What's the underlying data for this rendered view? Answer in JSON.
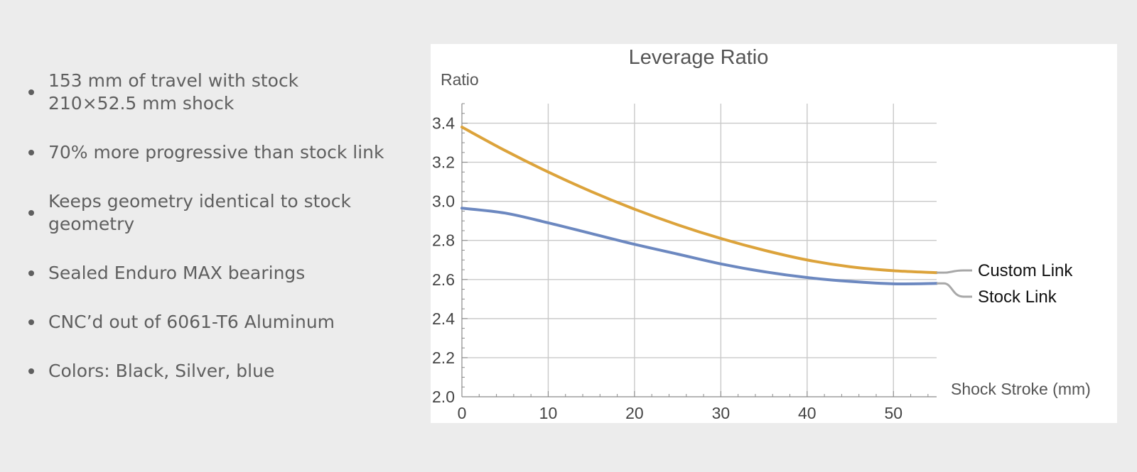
{
  "features": [
    {
      "text_lines": [
        "153 mm of travel with stock",
        "210×52.5 mm shock"
      ]
    },
    {
      "text_lines": [
        "70% more progressive than stock link"
      ]
    },
    {
      "text_lines": [
        "Keeps geometry identical to stock",
        "geometry"
      ]
    },
    {
      "text_lines": [
        "Sealed Enduro MAX bearings"
      ]
    },
    {
      "text_lines": [
        "CNC’d out of 6061-T6 Aluminum"
      ]
    },
    {
      "text_lines": [
        "Colors: Black, Silver, blue"
      ]
    }
  ],
  "colors": {
    "background": "#ececec",
    "text": "#5f5f5f",
    "custom_link": "#dca33b",
    "stock_link": "#6c88c0",
    "grid": "#c9c9c9",
    "callout": "#a8a8a8"
  },
  "chart_data": {
    "type": "line",
    "title": "Leverage Ratio",
    "ylabel": "Ratio",
    "xlabel": "Shock Stroke (mm)",
    "xlim": [
      0,
      55
    ],
    "ylim": [
      2.0,
      3.5
    ],
    "xticks": [
      0,
      10,
      20,
      30,
      40,
      50
    ],
    "yticks": [
      2.0,
      2.2,
      2.4,
      2.6,
      2.8,
      3.0,
      3.2,
      3.4
    ],
    "grid": true,
    "legend": "callout labels at right end of lines",
    "series": [
      {
        "name": "Custom Link",
        "color": "#dca33b",
        "x": [
          0,
          5,
          10,
          15,
          20,
          25,
          30,
          35,
          40,
          45,
          50,
          55
        ],
        "y": [
          3.38,
          3.26,
          3.15,
          3.05,
          2.96,
          2.88,
          2.81,
          2.75,
          2.7,
          2.665,
          2.645,
          2.635
        ]
      },
      {
        "name": "Stock Link",
        "color": "#6c88c0",
        "x": [
          0,
          5,
          10,
          15,
          20,
          25,
          30,
          35,
          40,
          45,
          50,
          55
        ],
        "y": [
          2.965,
          2.94,
          2.89,
          2.835,
          2.78,
          2.73,
          2.68,
          2.64,
          2.61,
          2.59,
          2.578,
          2.58
        ]
      }
    ]
  }
}
